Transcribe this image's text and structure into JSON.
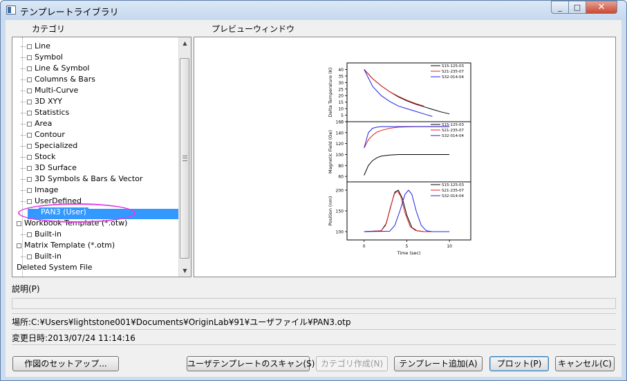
{
  "window": {
    "title": "テンプレートライブラリ",
    "minimize": "_",
    "maximize": "□",
    "close": "✕"
  },
  "labels": {
    "category": "カテゴリ",
    "preview": "プレビューウィンドウ",
    "description": "説明(P)"
  },
  "tree": {
    "items": [
      {
        "label": "Line",
        "level": 1
      },
      {
        "label": "Symbol",
        "level": 1
      },
      {
        "label": "Line & Symbol",
        "level": 1
      },
      {
        "label": "Columns & Bars",
        "level": 1
      },
      {
        "label": "Multi-Curve",
        "level": 1
      },
      {
        "label": "3D XYY",
        "level": 1
      },
      {
        "label": "Statistics",
        "level": 1
      },
      {
        "label": "Area",
        "level": 1
      },
      {
        "label": "Contour",
        "level": 1
      },
      {
        "label": "Specialized",
        "level": 1
      },
      {
        "label": "Stock",
        "level": 1
      },
      {
        "label": "3D Surface",
        "level": 1
      },
      {
        "label": "3D Symbols & Bars & Vector",
        "level": 1
      },
      {
        "label": "Image",
        "level": 1
      },
      {
        "label": "UserDefined",
        "level": 1
      },
      {
        "label": "PAN3 (User)",
        "level": 2,
        "selected": true
      },
      {
        "label": "Workbook Template (*.otw)",
        "level": 0
      },
      {
        "label": "Built-in",
        "level": 1
      },
      {
        "label": "Matrix Template (*.otm)",
        "level": 0
      },
      {
        "label": "Built-in",
        "level": 1
      },
      {
        "label": "Deleted System File",
        "level": 0
      }
    ]
  },
  "info": {
    "location": "場所:C:¥Users¥lightstone001¥Documents¥OriginLab¥91¥ユーザファイル¥PAN3.otp",
    "modified": "変更日時:2013/07/24 11:14:16"
  },
  "buttons": {
    "setup": "作図のセットアップ...",
    "scan": "ユーザテンプレートのスキャン(S)",
    "create_category": "カテゴリ作成(N)",
    "add_template": "テンプレート追加(A)",
    "plot": "プロット(P)",
    "cancel": "キャンセル(C)"
  },
  "colors": {
    "series": [
      "#000000",
      "#e02020",
      "#2020e0"
    ],
    "selection": "#3399ff",
    "annotation": "#e23de0"
  },
  "chart_data": {
    "type": "line",
    "xlabel": "Time (sec)",
    "x_ticks": [
      "0",
      "5",
      "10"
    ],
    "xlim": [
      -2,
      12.5
    ],
    "legend": [
      "S15-125-03",
      "S21-235-07",
      "S32-014-04"
    ],
    "panels": [
      {
        "ylabel": "Delta Temperature (K)",
        "ylim": [
          0,
          45
        ],
        "y_ticks": [
          "0",
          "5",
          "10",
          "15",
          "20",
          "25",
          "30",
          "35",
          "40"
        ],
        "series": [
          {
            "name": "S15-125-03",
            "x": [
              0,
              1,
              2,
              3,
              4,
              5,
              6,
              7,
              8,
              9,
              10
            ],
            "y": [
              40,
              33,
              27.5,
              23,
              19,
              16,
              13.5,
              11.5,
              9.5,
              7.5,
              6
            ]
          },
          {
            "name": "S21-235-07",
            "x": [
              0,
              1,
              2,
              3,
              4,
              5,
              6,
              7
            ],
            "y": [
              40,
              33,
              27.5,
              23,
              19.5,
              16.5,
              14,
              12
            ]
          },
          {
            "name": "S32-014-04",
            "x": [
              0,
              1,
              2,
              3,
              4,
              5,
              6,
              7,
              8
            ],
            "y": [
              40,
              27,
              20,
              15.5,
              12,
              10,
              8,
              6,
              4
            ]
          }
        ]
      },
      {
        "ylabel": "Magnetic Field (Oe)",
        "ylim": [
          50,
          160
        ],
        "y_ticks": [
          "60",
          "80",
          "100",
          "120",
          "140",
          "160"
        ],
        "series": [
          {
            "name": "S15-125-03",
            "x": [
              0,
              0.5,
              1,
              1.5,
              2,
              3,
              4,
              6,
              10
            ],
            "y": [
              62,
              80,
              89,
              94,
              97,
              99,
              100,
              100,
              100
            ]
          },
          {
            "name": "S21-235-07",
            "x": [
              0,
              0.5,
              1,
              1.5,
              2,
              3,
              4,
              6,
              10
            ],
            "y": [
              112,
              127,
              135,
              141,
              144,
              148,
              150,
              151,
              151
            ]
          },
          {
            "name": "S32-014-04",
            "x": [
              0,
              0.5,
              1,
              1.5,
              2,
              3,
              4,
              6,
              10
            ],
            "y": [
              112,
              140,
              148,
              150,
              151,
              151,
              151,
              151,
              151
            ]
          }
        ]
      },
      {
        "ylabel": "Position (nm)",
        "ylim": [
          80,
          220
        ],
        "y_ticks": [
          "100",
          "150",
          "200"
        ],
        "series": [
          {
            "name": "S15-125-03",
            "x": [
              0,
              2,
              2.6,
              3.1,
              3.6,
              4,
              4.5,
              5,
              5.6,
              6.2,
              7,
              10
            ],
            "y": [
              100,
              102,
              120,
              160,
              195,
              200,
              180,
              140,
              110,
              102,
              100,
              100
            ]
          },
          {
            "name": "S21-235-07",
            "x": [
              0,
              2,
              2.5,
              3,
              3.5,
              3.9,
              4.3,
              4.8,
              5.4,
              6,
              7,
              10
            ],
            "y": [
              100,
              102,
              115,
              150,
              190,
              198,
              185,
              145,
              112,
              103,
              100,
              100
            ]
          },
          {
            "name": "S32-014-04",
            "x": [
              0,
              3,
              3.6,
              4.2,
              4.8,
              5.2,
              5.6,
              6.1,
              6.7,
              7.3,
              8,
              10
            ],
            "y": [
              100,
              101,
              115,
              150,
              190,
              200,
              190,
              150,
              115,
              102,
              100,
              100
            ]
          }
        ]
      }
    ]
  }
}
